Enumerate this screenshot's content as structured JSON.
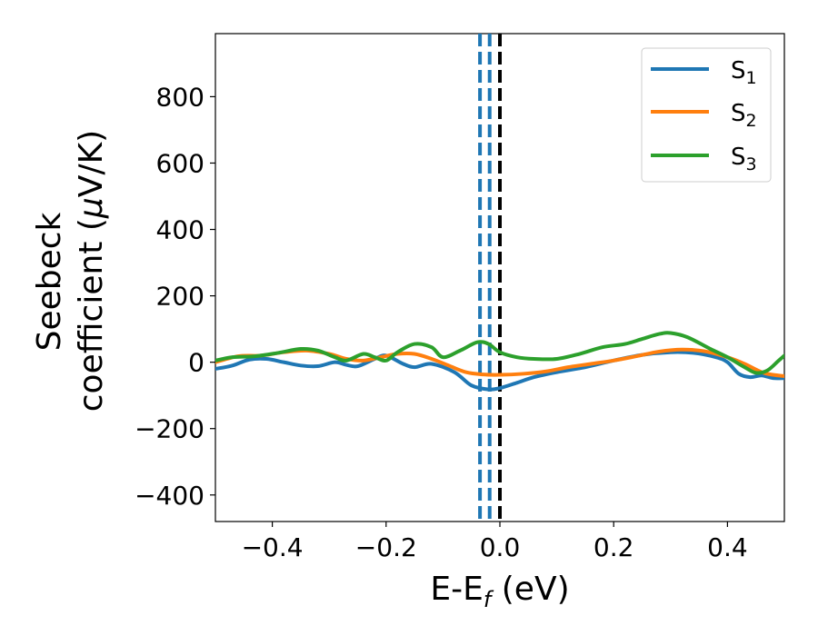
{
  "chart_data": {
    "type": "line",
    "xlabel": "E-E",
    "xlabel_sub": "f",
    "xlabel_unit": " (eV)",
    "ylabel_line1": "Seebeck",
    "ylabel_line2_pre": "coefficient  (",
    "ylabel_mu": "μ",
    "ylabel_line2_post": "V/K)",
    "xlim": [
      -0.5,
      0.5
    ],
    "ylim": [
      -480,
      990
    ],
    "x_ticks": [
      -0.4,
      -0.2,
      0.0,
      0.2,
      0.4
    ],
    "x_tick_labels": [
      "−0.4",
      "−0.2",
      "0.0",
      "0.2",
      "0.4"
    ],
    "y_ticks": [
      -400,
      -200,
      0,
      200,
      400,
      600,
      800
    ],
    "y_tick_labels": [
      "−400",
      "−200",
      "0",
      "200",
      "400",
      "600",
      "800"
    ],
    "grid": false,
    "legend_position": "top-right",
    "vertical_lines": [
      {
        "x": -0.035,
        "color": "#1f77b4",
        "style": "dashed"
      },
      {
        "x": -0.018,
        "color": "#1f77b4",
        "style": "dashed"
      },
      {
        "x": 0.0,
        "color": "#1f77b4",
        "style": "dashed"
      },
      {
        "x": 0.0,
        "color": "#000000",
        "style": "dashed"
      }
    ],
    "series": [
      {
        "name": "S",
        "sub": "1",
        "color": "#1f77b4",
        "points": [
          [
            -0.5,
            -20
          ],
          [
            -0.47,
            -10
          ],
          [
            -0.44,
            8
          ],
          [
            -0.41,
            10
          ],
          [
            -0.38,
            0
          ],
          [
            -0.35,
            -10
          ],
          [
            -0.32,
            -12
          ],
          [
            -0.29,
            0
          ],
          [
            -0.27,
            -8
          ],
          [
            -0.25,
            -12
          ],
          [
            -0.22,
            10
          ],
          [
            -0.2,
            20
          ],
          [
            -0.17,
            -5
          ],
          [
            -0.15,
            -15
          ],
          [
            -0.12,
            -5
          ],
          [
            -0.08,
            -30
          ],
          [
            -0.05,
            -70
          ],
          [
            -0.02,
            -82
          ],
          [
            0.0,
            -78
          ],
          [
            0.03,
            -62
          ],
          [
            0.06,
            -45
          ],
          [
            0.1,
            -30
          ],
          [
            0.15,
            -15
          ],
          [
            0.2,
            5
          ],
          [
            0.25,
            22
          ],
          [
            0.3,
            30
          ],
          [
            0.34,
            28
          ],
          [
            0.38,
            15
          ],
          [
            0.4,
            0
          ],
          [
            0.42,
            -35
          ],
          [
            0.44,
            -45
          ],
          [
            0.46,
            -40
          ],
          [
            0.48,
            -48
          ],
          [
            0.5,
            -48
          ]
        ]
      },
      {
        "name": "S",
        "sub": "2",
        "color": "#ff7f0e",
        "points": [
          [
            -0.5,
            0
          ],
          [
            -0.46,
            18
          ],
          [
            -0.42,
            20
          ],
          [
            -0.38,
            30
          ],
          [
            -0.34,
            35
          ],
          [
            -0.3,
            25
          ],
          [
            -0.27,
            10
          ],
          [
            -0.24,
            5
          ],
          [
            -0.21,
            15
          ],
          [
            -0.18,
            25
          ],
          [
            -0.15,
            25
          ],
          [
            -0.12,
            10
          ],
          [
            -0.09,
            -10
          ],
          [
            -0.06,
            -30
          ],
          [
            -0.03,
            -37
          ],
          [
            0.0,
            -38
          ],
          [
            0.04,
            -35
          ],
          [
            0.08,
            -28
          ],
          [
            0.12,
            -15
          ],
          [
            0.16,
            -5
          ],
          [
            0.2,
            5
          ],
          [
            0.24,
            18
          ],
          [
            0.28,
            32
          ],
          [
            0.32,
            38
          ],
          [
            0.36,
            33
          ],
          [
            0.4,
            15
          ],
          [
            0.43,
            -5
          ],
          [
            0.46,
            -30
          ],
          [
            0.48,
            -38
          ],
          [
            0.5,
            -42
          ]
        ]
      },
      {
        "name": "S",
        "sub": "3",
        "color": "#2ca02c",
        "points": [
          [
            -0.5,
            5
          ],
          [
            -0.47,
            15
          ],
          [
            -0.43,
            18
          ],
          [
            -0.39,
            28
          ],
          [
            -0.35,
            40
          ],
          [
            -0.32,
            35
          ],
          [
            -0.29,
            15
          ],
          [
            -0.27,
            5
          ],
          [
            -0.24,
            25
          ],
          [
            -0.22,
            15
          ],
          [
            -0.2,
            5
          ],
          [
            -0.18,
            30
          ],
          [
            -0.15,
            55
          ],
          [
            -0.12,
            45
          ],
          [
            -0.1,
            15
          ],
          [
            -0.07,
            35
          ],
          [
            -0.04,
            60
          ],
          [
            -0.02,
            55
          ],
          [
            0.0,
            30
          ],
          [
            0.03,
            15
          ],
          [
            0.06,
            10
          ],
          [
            0.1,
            10
          ],
          [
            0.14,
            25
          ],
          [
            0.18,
            45
          ],
          [
            0.22,
            55
          ],
          [
            0.25,
            70
          ],
          [
            0.28,
            85
          ],
          [
            0.3,
            88
          ],
          [
            0.33,
            75
          ],
          [
            0.37,
            40
          ],
          [
            0.4,
            15
          ],
          [
            0.43,
            -15
          ],
          [
            0.45,
            -32
          ],
          [
            0.47,
            -25
          ],
          [
            0.49,
            5
          ],
          [
            0.5,
            20
          ]
        ]
      }
    ]
  }
}
